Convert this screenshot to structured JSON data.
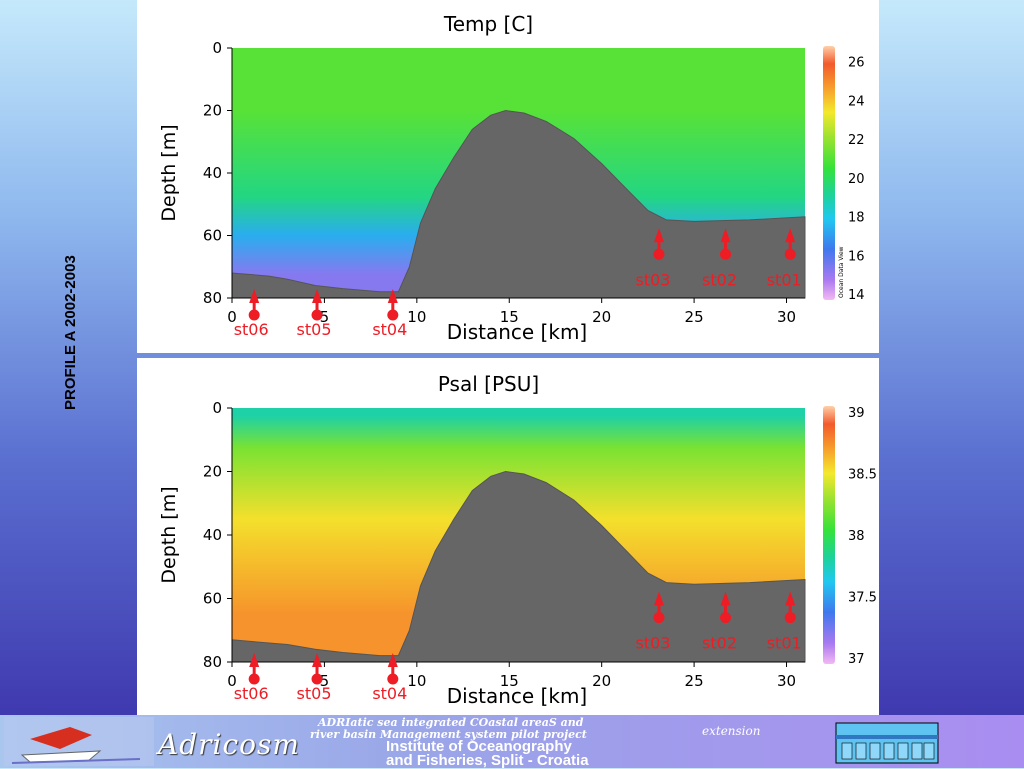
{
  "slide": {
    "side_title": "PROFILE  A 2002-2003"
  },
  "footer": {
    "project_line1": "ADRIatic sea integrated COastal areaS and",
    "project_line2": "river basin Management system pilot project",
    "project_ext": "extension",
    "logo_text": "Adricosm",
    "institute_line1": "Institute of Oceanography",
    "institute_line2": "and Fisheries, Split - Croatia"
  },
  "chart_data": [
    {
      "type": "heatmap",
      "title": "Temp [C]",
      "xlabel": "Distance [km]",
      "ylabel": "Depth [m]",
      "xlim": [
        0,
        31
      ],
      "ylim": [
        80,
        0
      ],
      "x_ticks": [
        "0",
        "5",
        "10",
        "15",
        "20",
        "25",
        "30"
      ],
      "y_ticks": [
        "0",
        "20",
        "40",
        "60",
        "80"
      ],
      "colorbar": {
        "min": 14,
        "max": 26.5,
        "ticks": [
          "26",
          "24",
          "22",
          "20",
          "18",
          "16",
          "14"
        ],
        "tick_values": [
          26,
          24,
          22,
          20,
          18,
          16,
          14
        ],
        "credit": "Ocean Data View"
      },
      "layers": [
        {
          "depth_from": 0,
          "depth_to": 40,
          "value": 21.0
        },
        {
          "depth_from": 40,
          "depth_to": 55,
          "value": 19.5
        },
        {
          "depth_from": 55,
          "depth_to": 65,
          "value": 17.5
        },
        {
          "depth_from": 65,
          "depth_to": 80,
          "value": 15.5
        }
      ],
      "bathymetry": [
        [
          0,
          72
        ],
        [
          2,
          73
        ],
        [
          3,
          74
        ],
        [
          4.5,
          76
        ],
        [
          6,
          77
        ],
        [
          8,
          78
        ],
        [
          9,
          78
        ],
        [
          9.6,
          70
        ],
        [
          10.2,
          56
        ],
        [
          11,
          45
        ],
        [
          12,
          35
        ],
        [
          13,
          26
        ],
        [
          14,
          21.5
        ],
        [
          14.8,
          20
        ],
        [
          15.8,
          20.8
        ],
        [
          17,
          23.5
        ],
        [
          18.5,
          29
        ],
        [
          20,
          37
        ],
        [
          21.5,
          46
        ],
        [
          22.5,
          52
        ],
        [
          23.5,
          55
        ],
        [
          25,
          55.5
        ],
        [
          28,
          55
        ],
        [
          31,
          54
        ]
      ],
      "stations_seafloor": [
        {
          "name": "st06",
          "x": 1.2
        },
        {
          "name": "st05",
          "x": 4.6
        },
        {
          "name": "st04",
          "x": 8.7
        }
      ],
      "stations_shelf": [
        {
          "name": "st03",
          "x": 23.1
        },
        {
          "name": "st02",
          "x": 26.7
        },
        {
          "name": "st01",
          "x": 30.2
        }
      ]
    },
    {
      "type": "heatmap",
      "title": "Psal [PSU]",
      "xlabel": "Distance [km]",
      "ylabel": "Depth [m]",
      "xlim": [
        0,
        31
      ],
      "ylim": [
        80,
        0
      ],
      "x_ticks": [
        "0",
        "5",
        "10",
        "15",
        "20",
        "25",
        "30"
      ],
      "y_ticks": [
        "0",
        "20",
        "40",
        "60",
        "80"
      ],
      "colorbar": {
        "min": 37,
        "max": 39,
        "ticks": [
          "39",
          "38.5",
          "38",
          "37.5",
          "37"
        ],
        "tick_values": [
          39,
          38.5,
          38,
          37.5,
          37
        ],
        "credit": ""
      },
      "layers": [
        {
          "depth_from": 0,
          "depth_to": 5,
          "value": 37.8
        },
        {
          "depth_from": 5,
          "depth_to": 20,
          "value": 38.2
        },
        {
          "depth_from": 20,
          "depth_to": 50,
          "value": 38.5
        },
        {
          "depth_from": 50,
          "depth_to": 80,
          "value": 38.7
        }
      ],
      "bathymetry": [
        [
          0,
          73
        ],
        [
          2,
          74
        ],
        [
          3,
          74.5
        ],
        [
          4.5,
          76
        ],
        [
          6,
          77
        ],
        [
          8,
          78
        ],
        [
          9,
          78
        ],
        [
          9.6,
          70
        ],
        [
          10.2,
          56
        ],
        [
          11,
          45
        ],
        [
          12,
          35
        ],
        [
          13,
          26
        ],
        [
          14,
          21.5
        ],
        [
          14.8,
          20
        ],
        [
          15.8,
          20.8
        ],
        [
          17,
          23.5
        ],
        [
          18.5,
          29
        ],
        [
          20,
          37
        ],
        [
          21.5,
          46
        ],
        [
          22.5,
          52
        ],
        [
          23.5,
          55
        ],
        [
          25,
          55.5
        ],
        [
          28,
          55
        ],
        [
          31,
          54
        ]
      ],
      "stations_seafloor": [
        {
          "name": "st06",
          "x": 1.2
        },
        {
          "name": "st05",
          "x": 4.6
        },
        {
          "name": "st04",
          "x": 8.7
        }
      ],
      "stations_shelf": [
        {
          "name": "st03",
          "x": 23.1
        },
        {
          "name": "st02",
          "x": 26.7
        },
        {
          "name": "st01",
          "x": 30.2
        }
      ]
    }
  ]
}
